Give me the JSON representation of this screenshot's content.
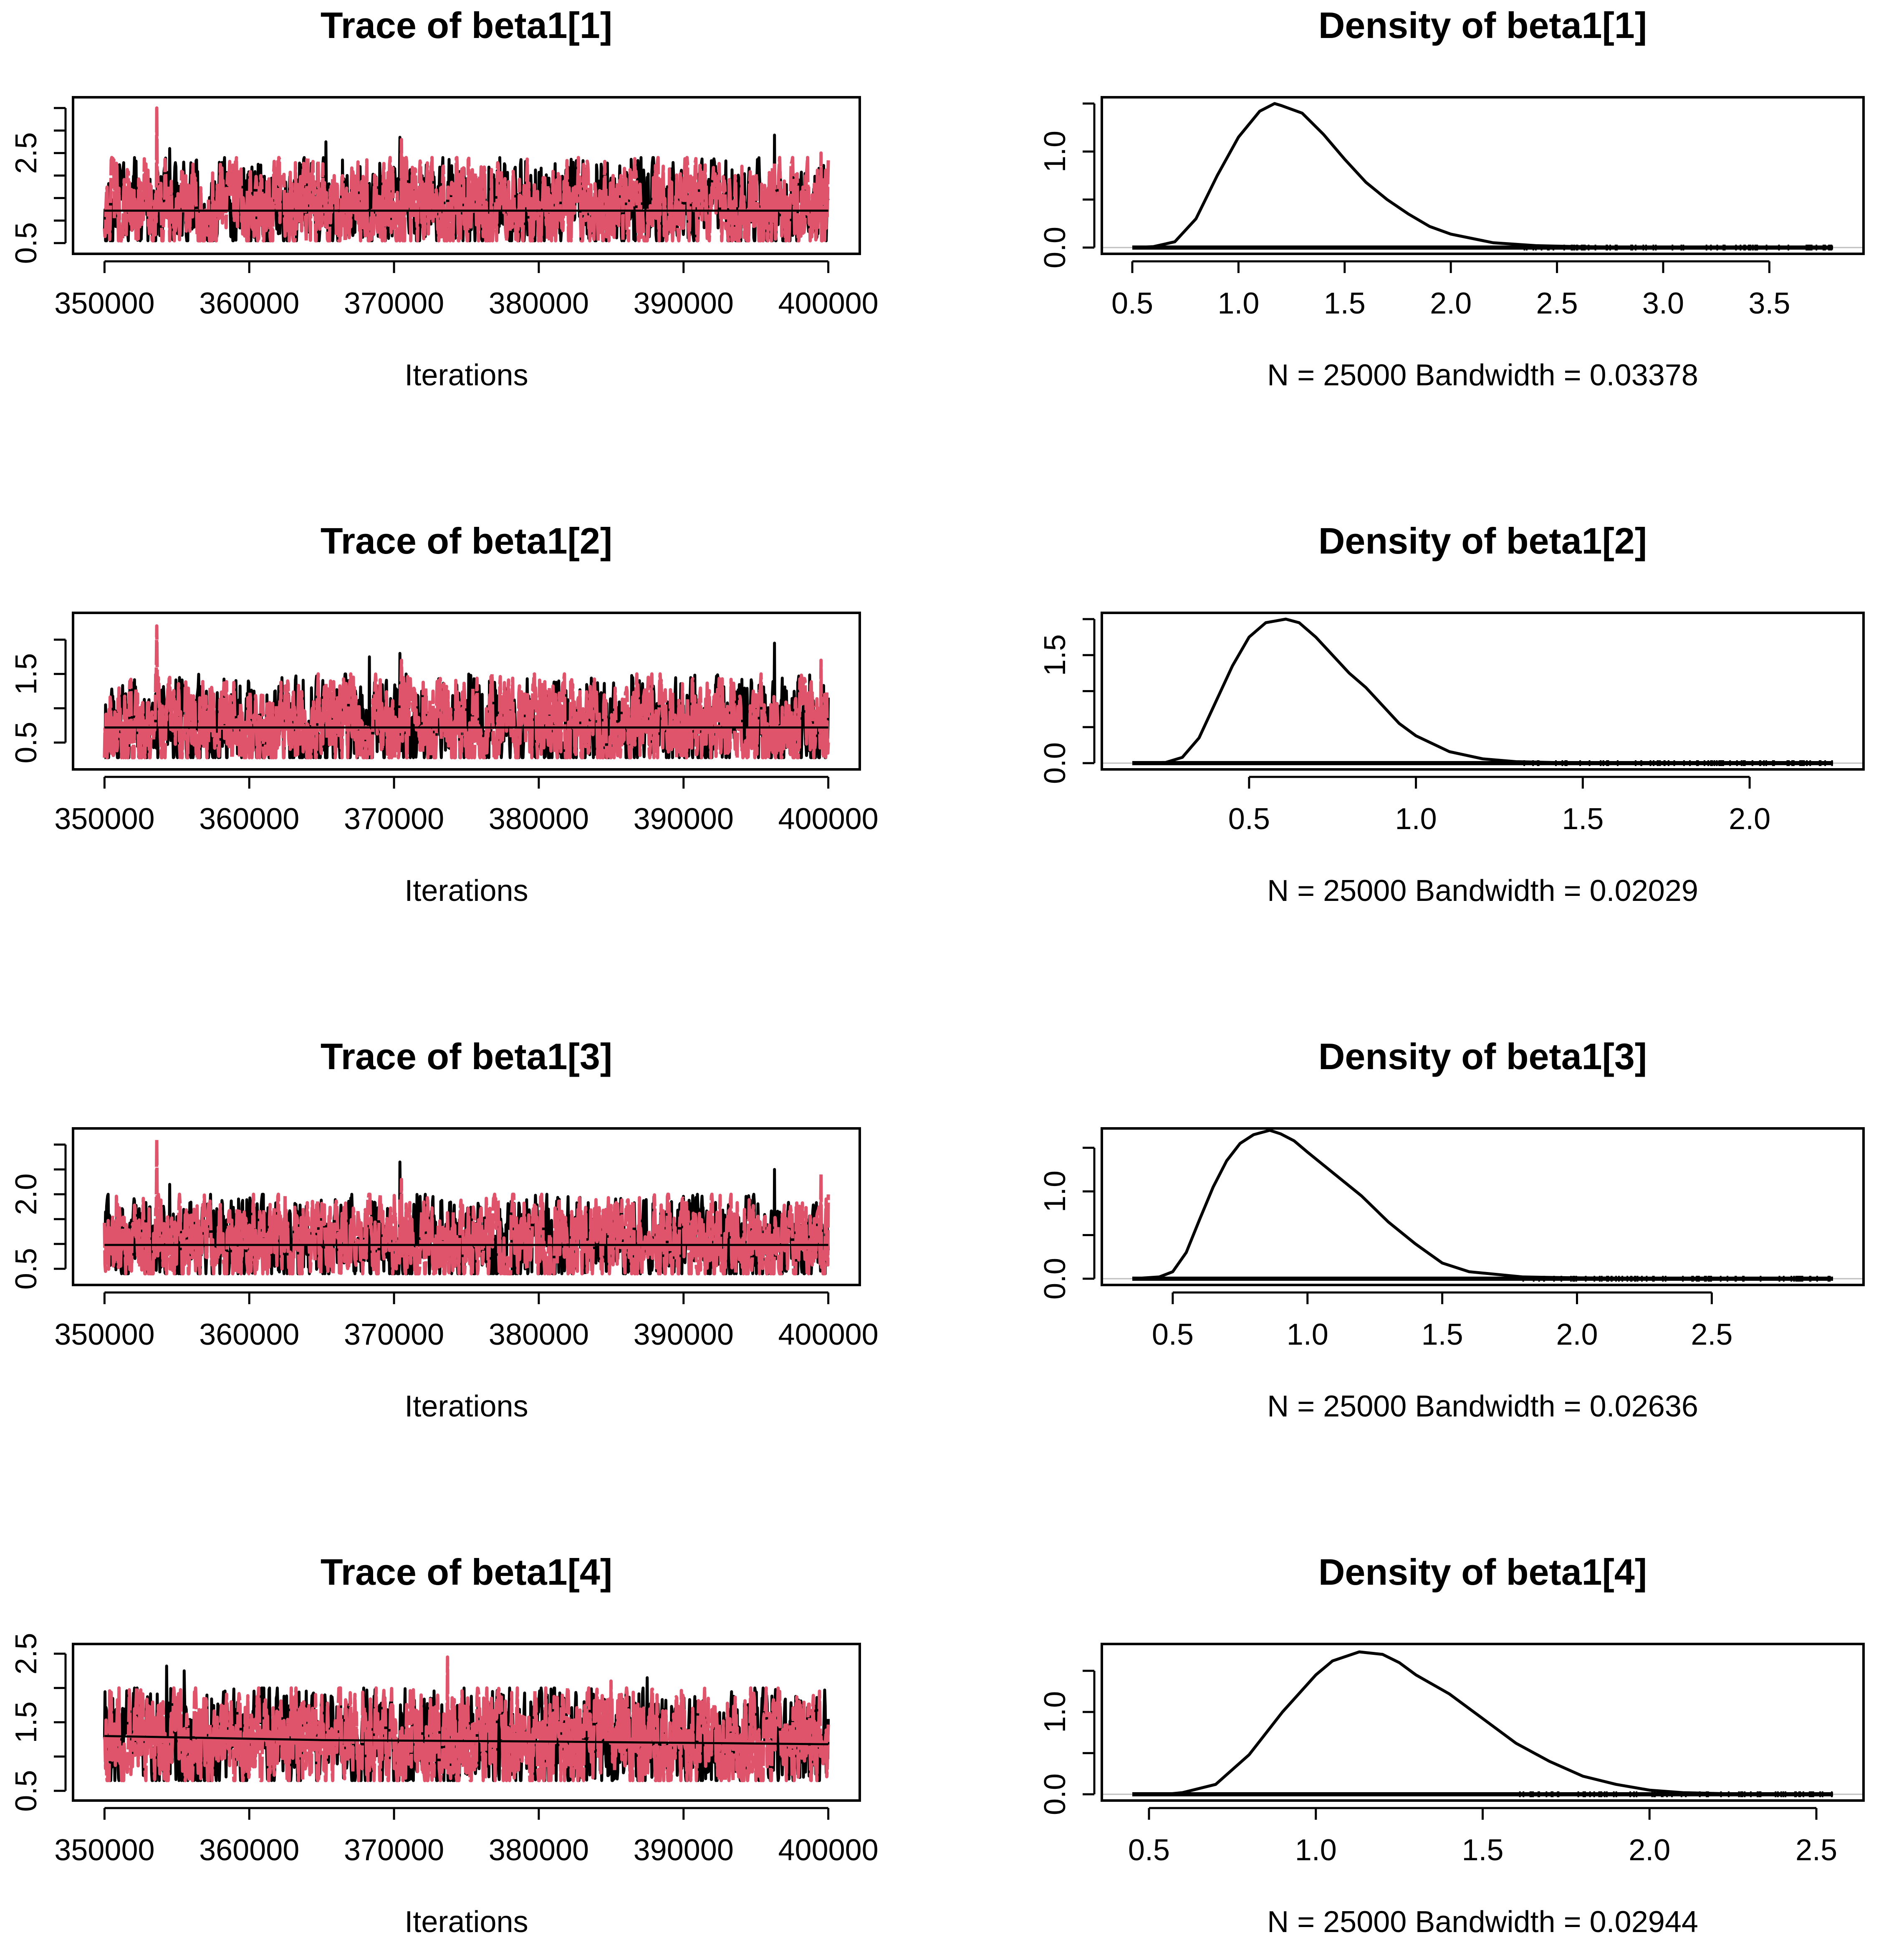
{
  "figure": "MCMC trace and density diagnostics",
  "colors": {
    "chain1": "#000000",
    "chain2": "#DF536B",
    "zero_line": "#bfbfbf",
    "axis": "#000000"
  },
  "chart_data": [
    {
      "type": "line",
      "kind": "trace",
      "param": "beta1[1]",
      "title": "Trace of beta1[1]",
      "xlabel": "Iterations",
      "xlim": [
        350000,
        400000
      ],
      "ylim": [
        0.4,
        3.6
      ],
      "x_ticks": [
        350000,
        360000,
        370000,
        380000,
        390000,
        400000
      ],
      "x_tick_labels": [
        "350000",
        "360000",
        "370000",
        "380000",
        "390000",
        "400000"
      ],
      "y_ticks": [
        0.5,
        1.0,
        1.5,
        2.0,
        2.5,
        3.0,
        3.5
      ],
      "y_tick_labels": [
        "0.5",
        "",
        "",
        "",
        "2.5",
        "",
        ""
      ],
      "series": [
        {
          "name": "chain 1",
          "color": "#000000",
          "center": 1.25,
          "low": 0.55,
          "high": 2.4,
          "spikes": [
            [
              365300,
              2.75
            ],
            [
              370400,
              2.85
            ],
            [
              396300,
              2.9
            ],
            [
              354500,
              2.6
            ]
          ]
        },
        {
          "name": "chain 2",
          "color": "#DF536B",
          "center": 1.25,
          "low": 0.55,
          "high": 2.4,
          "spikes": [
            [
              353600,
              3.5
            ],
            [
              370500,
              2.8
            ],
            [
              399500,
              2.5
            ]
          ]
        }
      ],
      "running_mean": [
        [
          350000,
          1.22
        ],
        [
          400000,
          1.22
        ]
      ]
    },
    {
      "type": "area",
      "kind": "density",
      "param": "beta1[1]",
      "title": "Density of beta1[1]",
      "xlabel": "N = 25000   Bandwidth = 0.03378",
      "n": 25000,
      "bandwidth": 0.03378,
      "xlim": [
        0.5,
        3.8
      ],
      "ylim": [
        0.0,
        1.5
      ],
      "x_ticks": [
        0.5,
        1.0,
        1.5,
        2.0,
        2.5,
        3.0,
        3.5
      ],
      "x_tick_labels": [
        "0.5",
        "1.0",
        "1.5",
        "2.0",
        "2.5",
        "3.0",
        "3.5"
      ],
      "y_ticks": [
        0.0,
        0.5,
        1.0,
        1.5
      ],
      "y_tick_labels": [
        "0.0",
        "",
        "1.0",
        ""
      ],
      "x": [
        0.5,
        0.6,
        0.7,
        0.8,
        0.9,
        1.0,
        1.1,
        1.17,
        1.2,
        1.3,
        1.4,
        1.5,
        1.6,
        1.7,
        1.8,
        1.9,
        2.0,
        2.2,
        2.4,
        2.6,
        2.8,
        3.0,
        3.5,
        3.8
      ],
      "y": [
        0.0,
        0.01,
        0.06,
        0.3,
        0.75,
        1.15,
        1.42,
        1.5,
        1.48,
        1.4,
        1.18,
        0.92,
        0.68,
        0.5,
        0.35,
        0.22,
        0.14,
        0.05,
        0.02,
        0.01,
        0.005,
        0.0,
        0.0,
        0.0
      ]
    },
    {
      "type": "line",
      "kind": "trace",
      "param": "beta1[2]",
      "title": "Trace of beta1[2]",
      "xlabel": "Iterations",
      "xlim": [
        350000,
        400000
      ],
      "ylim": [
        0.2,
        2.3
      ],
      "x_ticks": [
        350000,
        360000,
        370000,
        380000,
        390000,
        400000
      ],
      "x_tick_labels": [
        "350000",
        "360000",
        "370000",
        "380000",
        "390000",
        "400000"
      ],
      "y_ticks": [
        0.5,
        1.0,
        1.5,
        2.0
      ],
      "y_tick_labels": [
        "0.5",
        "",
        "1.5",
        ""
      ],
      "series": [
        {
          "name": "chain 1",
          "color": "#000000",
          "center": 0.72,
          "low": 0.28,
          "high": 1.5,
          "spikes": [
            [
              370400,
              1.8
            ],
            [
              396300,
              1.95
            ],
            [
              368300,
              1.75
            ]
          ]
        },
        {
          "name": "chain 2",
          "color": "#DF536B",
          "center": 0.72,
          "low": 0.28,
          "high": 1.5,
          "spikes": [
            [
              353600,
              2.2
            ],
            [
              370500,
              1.7
            ],
            [
              399500,
              1.7
            ]
          ]
        }
      ],
      "running_mean": [
        [
          350000,
          0.72
        ],
        [
          400000,
          0.72
        ]
      ]
    },
    {
      "type": "area",
      "kind": "density",
      "param": "beta1[2]",
      "title": "Density of beta1[2]",
      "xlabel": "N = 25000   Bandwidth = 0.02029",
      "n": 25000,
      "bandwidth": 0.02029,
      "xlim": [
        0.15,
        2.25
      ],
      "ylim": [
        0.0,
        2.0
      ],
      "x_ticks": [
        0.5,
        1.0,
        1.5,
        2.0
      ],
      "x_tick_labels": [
        "0.5",
        "1.0",
        "1.5",
        "2.0"
      ],
      "y_ticks": [
        0.0,
        0.5,
        1.0,
        1.5,
        2.0
      ],
      "y_tick_labels": [
        "0.0",
        "",
        "",
        "1.5",
        ""
      ],
      "x": [
        0.15,
        0.25,
        0.3,
        0.35,
        0.4,
        0.45,
        0.5,
        0.55,
        0.61,
        0.65,
        0.7,
        0.75,
        0.8,
        0.85,
        0.9,
        0.95,
        1.0,
        1.1,
        1.2,
        1.3,
        1.5,
        1.8,
        2.25
      ],
      "y": [
        0.0,
        0.01,
        0.08,
        0.35,
        0.85,
        1.35,
        1.75,
        1.95,
        2.0,
        1.95,
        1.75,
        1.5,
        1.25,
        1.05,
        0.8,
        0.55,
        0.38,
        0.16,
        0.06,
        0.02,
        0.0,
        0.0,
        0.0
      ]
    },
    {
      "type": "line",
      "kind": "trace",
      "param": "beta1[3]",
      "title": "Trace of beta1[3]",
      "xlabel": "Iterations",
      "xlim": [
        350000,
        400000
      ],
      "ylim": [
        0.3,
        3.2
      ],
      "x_ticks": [
        350000,
        360000,
        370000,
        380000,
        390000,
        400000
      ],
      "x_tick_labels": [
        "350000",
        "360000",
        "370000",
        "380000",
        "390000",
        "400000"
      ],
      "y_ticks": [
        0.5,
        1.0,
        1.5,
        2.0,
        2.5,
        3.0
      ],
      "y_tick_labels": [
        "0.5",
        "",
        "",
        "2.0",
        "",
        ""
      ],
      "series": [
        {
          "name": "chain 1",
          "color": "#000000",
          "center": 1.0,
          "low": 0.4,
          "high": 2.0,
          "spikes": [
            [
              370400,
              2.65
            ],
            [
              396300,
              2.5
            ],
            [
              354500,
              2.2
            ]
          ]
        },
        {
          "name": "chain 2",
          "color": "#DF536B",
          "center": 1.0,
          "low": 0.4,
          "high": 2.0,
          "spikes": [
            [
              353600,
              3.1
            ],
            [
              370500,
              2.3
            ],
            [
              399500,
              2.4
            ]
          ]
        }
      ],
      "running_mean": [
        [
          350000,
          0.98
        ],
        [
          400000,
          0.98
        ]
      ]
    },
    {
      "type": "area",
      "kind": "density",
      "param": "beta1[3]",
      "title": "Density of beta1[3]",
      "xlabel": "N = 25000   Bandwidth = 0.02636",
      "n": 25000,
      "bandwidth": 0.02636,
      "xlim": [
        0.35,
        2.95
      ],
      "ylim": [
        0.0,
        1.65
      ],
      "x_ticks": [
        0.5,
        1.0,
        1.5,
        2.0,
        2.5,
        3.0
      ],
      "x_tick_labels": [
        "0.5",
        "1.0",
        "1.5",
        "2.0",
        "2.5",
        "3.0"
      ],
      "y_ticks": [
        0.0,
        0.5,
        1.0,
        1.5
      ],
      "y_tick_labels": [
        "0.0",
        "",
        "1.0",
        ""
      ],
      "x": [
        0.35,
        0.45,
        0.5,
        0.55,
        0.6,
        0.65,
        0.7,
        0.75,
        0.8,
        0.86,
        0.9,
        0.95,
        1.0,
        1.1,
        1.2,
        1.3,
        1.4,
        1.5,
        1.6,
        1.8,
        2.0,
        2.5,
        2.95
      ],
      "y": [
        0.0,
        0.02,
        0.08,
        0.3,
        0.68,
        1.05,
        1.35,
        1.55,
        1.65,
        1.7,
        1.66,
        1.58,
        1.45,
        1.2,
        0.95,
        0.65,
        0.4,
        0.18,
        0.08,
        0.02,
        0.01,
        0.0,
        0.0
      ]
    },
    {
      "type": "line",
      "kind": "trace",
      "param": "beta1[4]",
      "title": "Trace of beta1[4]",
      "xlabel": "Iterations",
      "xlim": [
        350000,
        400000
      ],
      "ylim": [
        0.45,
        2.55
      ],
      "x_ticks": [
        350000,
        360000,
        370000,
        380000,
        390000,
        400000
      ],
      "x_tick_labels": [
        "350000",
        "360000",
        "370000",
        "380000",
        "390000",
        "400000"
      ],
      "y_ticks": [
        0.5,
        1.0,
        1.5,
        2.0,
        2.5
      ],
      "y_tick_labels": [
        "0.5",
        "",
        "1.5",
        "",
        "2.5"
      ],
      "series": [
        {
          "name": "chain 1",
          "color": "#000000",
          "center": 1.2,
          "low": 0.65,
          "high": 2.0,
          "spikes": [
            [
              354300,
              2.32
            ],
            [
              355500,
              2.25
            ],
            [
              387500,
              2.15
            ]
          ]
        },
        {
          "name": "chain 2",
          "color": "#DF536B",
          "center": 1.2,
          "low": 0.65,
          "high": 2.0,
          "spikes": [
            [
              373700,
              2.45
            ],
            [
              351000,
              2.0
            ],
            [
              385000,
              2.1
            ]
          ]
        }
      ],
      "running_mean": [
        [
          350000,
          1.3
        ],
        [
          365000,
          1.24
        ],
        [
          380000,
          1.22
        ],
        [
          400000,
          1.18
        ]
      ]
    },
    {
      "type": "area",
      "kind": "density",
      "param": "beta1[4]",
      "title": "Density of beta1[4]",
      "xlabel": "N = 25000   Bandwidth = 0.02944",
      "n": 25000,
      "bandwidth": 0.02944,
      "xlim": [
        0.45,
        2.55
      ],
      "ylim": [
        0.0,
        1.75
      ],
      "x_ticks": [
        0.5,
        1.0,
        1.5,
        2.0,
        2.5
      ],
      "x_tick_labels": [
        "0.5",
        "1.0",
        "1.5",
        "2.0",
        "2.5"
      ],
      "y_ticks": [
        0.0,
        0.5,
        1.0,
        1.5
      ],
      "y_tick_labels": [
        "0.0",
        "",
        "1.0",
        ""
      ],
      "x": [
        0.45,
        0.55,
        0.6,
        0.7,
        0.8,
        0.9,
        1.0,
        1.05,
        1.13,
        1.2,
        1.25,
        1.3,
        1.4,
        1.5,
        1.6,
        1.7,
        1.8,
        1.9,
        2.0,
        2.1,
        2.3,
        2.55
      ],
      "y": [
        0.0,
        0.0,
        0.02,
        0.12,
        0.48,
        1.0,
        1.45,
        1.62,
        1.73,
        1.7,
        1.6,
        1.45,
        1.22,
        0.92,
        0.62,
        0.4,
        0.22,
        0.12,
        0.05,
        0.02,
        0.0,
        0.0
      ]
    }
  ]
}
